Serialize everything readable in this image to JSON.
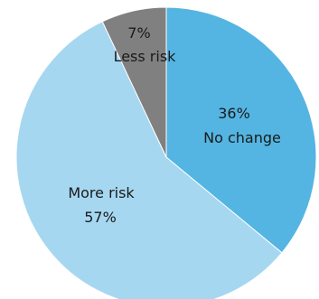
{
  "chart_data": {
    "type": "pie",
    "start_angle_deg": 0,
    "direction": "clockwise",
    "slices": [
      {
        "label": "No change",
        "value": 36,
        "value_text": "36%",
        "color": "#54b5e2"
      },
      {
        "label": "More risk",
        "value": 57,
        "value_text": "57%",
        "color": "#a6d7f0"
      },
      {
        "label": "Less risk",
        "value": 7,
        "value_text": "7%",
        "color": "#808080"
      }
    ]
  }
}
